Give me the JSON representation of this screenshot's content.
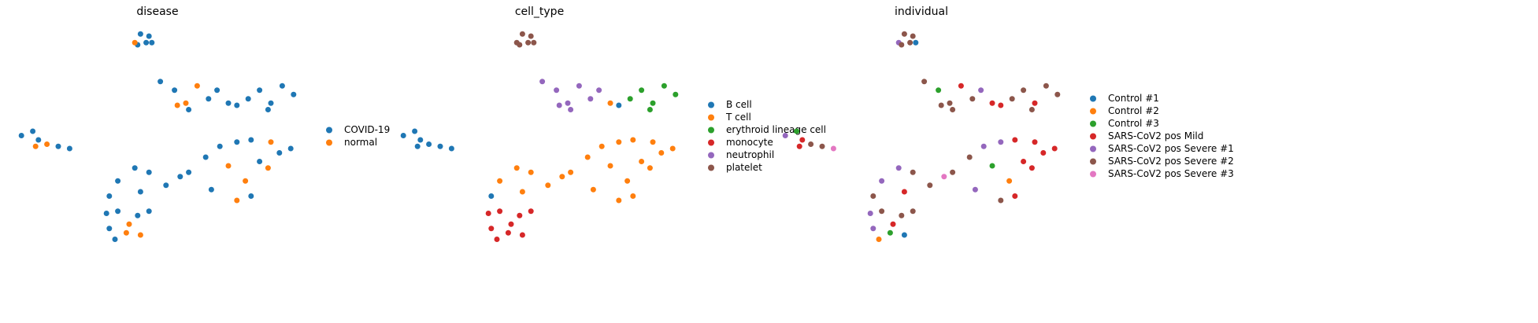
{
  "chart_data": [
    {
      "type": "scatter",
      "title": "disease",
      "xlim": [
        0,
        10
      ],
      "ylim": [
        0,
        10
      ],
      "legend": "right",
      "series": [
        {
          "name": "COVID-19",
          "color": "#1f77b4",
          "x": [
            4.4,
            4.7,
            4.8,
            4.3,
            4.6,
            5.1,
            5.6,
            6.8,
            6.1,
            7.1,
            7.5,
            7.8,
            8.2,
            8.6,
            9.0,
            9.4,
            9.8,
            8.9,
            0.2,
            0.6,
            0.8,
            1.5,
            1.9,
            6.1,
            6.7,
            7.2,
            7.8,
            8.3,
            9.7,
            8.6,
            9.3,
            6.9,
            8.3,
            3.6,
            4.2,
            4.7,
            5.3,
            4.4,
            3.3,
            5.8,
            3.2,
            3.6,
            4.3,
            4.7,
            3.3,
            3.5
          ],
          "y": [
            9.7,
            9.6,
            9.3,
            9.2,
            9.3,
            7.5,
            7.1,
            6.7,
            6.2,
            7.1,
            6.5,
            6.4,
            6.7,
            7.1,
            6.5,
            7.3,
            6.9,
            6.2,
            5.0,
            5.2,
            4.8,
            4.5,
            4.4,
            3.3,
            4.0,
            4.5,
            4.7,
            4.8,
            4.4,
            3.8,
            4.2,
            2.5,
            2.2,
            2.9,
            3.5,
            3.3,
            2.7,
            2.4,
            2.2,
            3.1,
            1.4,
            1.5,
            1.3,
            1.5,
            0.7,
            0.2
          ]
        },
        {
          "name": "normal",
          "color": "#ff7f0e",
          "x": [
            4.2,
            6.0,
            6.4,
            5.7,
            1.1,
            0.7,
            9.0,
            7.5,
            8.1,
            7.8,
            8.9,
            3.9,
            4.4,
            4.0
          ],
          "y": [
            9.3,
            6.5,
            7.3,
            6.4,
            4.6,
            4.5,
            4.7,
            3.6,
            2.9,
            2.0,
            3.5,
            0.5,
            0.4,
            0.9
          ]
        }
      ]
    },
    {
      "type": "scatter",
      "title": "cell_type",
      "xlim": [
        0,
        10
      ],
      "ylim": [
        0,
        10
      ],
      "legend": "right",
      "series": [
        {
          "name": "B cell",
          "color": "#1f77b4",
          "x": [
            7.8,
            0.2,
            0.6,
            0.8,
            1.1,
            1.5,
            1.9,
            0.7,
            3.3
          ],
          "y": [
            6.4,
            5.0,
            5.2,
            4.8,
            4.6,
            4.5,
            4.4,
            4.5,
            2.2
          ]
        },
        {
          "name": "T cell",
          "color": "#ff7f0e",
          "x": [
            7.5,
            6.1,
            6.7,
            7.2,
            7.8,
            8.3,
            9.0,
            9.7,
            7.5,
            8.1,
            8.6,
            9.3,
            6.9,
            7.8,
            8.3,
            8.9,
            3.6,
            4.2,
            4.7,
            5.3,
            4.4,
            5.8
          ],
          "y": [
            6.5,
            3.3,
            4.0,
            4.5,
            4.7,
            4.8,
            4.7,
            4.4,
            3.6,
            2.9,
            3.8,
            4.2,
            2.5,
            2.0,
            2.2,
            3.5,
            2.9,
            3.5,
            3.3,
            2.7,
            2.4,
            3.1
          ]
        },
        {
          "name": "erythroid lineage cell",
          "color": "#2ca02c",
          "x": [
            8.2,
            8.6,
            9.0,
            9.4,
            9.8,
            8.9
          ],
          "y": [
            6.7,
            7.1,
            6.5,
            7.3,
            6.9,
            6.2
          ]
        },
        {
          "name": "monocyte",
          "color": "#d62728",
          "x": [
            3.2,
            3.6,
            4.3,
            4.7,
            3.3,
            3.9,
            4.4,
            3.5,
            4.0
          ],
          "y": [
            1.4,
            1.5,
            1.3,
            1.5,
            0.7,
            0.5,
            0.4,
            0.2,
            0.9
          ]
        },
        {
          "name": "neutrophil",
          "color": "#9467bd",
          "x": [
            5.1,
            5.6,
            6.0,
            6.4,
            6.8,
            6.1,
            5.7,
            7.1
          ],
          "y": [
            7.5,
            7.1,
            6.5,
            7.3,
            6.7,
            6.2,
            6.4,
            7.1
          ]
        },
        {
          "name": "platelet",
          "color": "#8c564b",
          "x": [
            4.2,
            4.4,
            4.7,
            4.8,
            4.3,
            4.6
          ],
          "y": [
            9.3,
            9.7,
            9.6,
            9.3,
            9.2,
            9.3
          ]
        }
      ]
    },
    {
      "type": "scatter",
      "title": "individual",
      "xlim": [
        0,
        10
      ],
      "ylim": [
        0,
        10
      ],
      "legend": "right",
      "series": [
        {
          "name": "Control #1",
          "color": "#1f77b4",
          "x": [
            4.8,
            4.4
          ],
          "y": [
            9.3,
            0.4
          ]
        },
        {
          "name": "Control #2",
          "color": "#ff7f0e",
          "x": [
            8.1,
            3.5
          ],
          "y": [
            2.9,
            0.2
          ]
        },
        {
          "name": "Control #3",
          "color": "#2ca02c",
          "x": [
            5.6,
            0.6,
            7.5,
            3.9
          ],
          "y": [
            7.1,
            5.2,
            3.6,
            0.5
          ]
        },
        {
          "name": "SARS-CoV2 pos Mild",
          "color": "#d62728",
          "x": [
            6.4,
            7.5,
            7.8,
            9.0,
            0.8,
            0.7,
            8.3,
            9.0,
            9.7,
            8.6,
            9.3,
            8.3,
            8.9,
            4.4,
            4.0
          ],
          "y": [
            7.3,
            6.5,
            6.4,
            6.5,
            4.8,
            4.5,
            4.8,
            4.7,
            4.4,
            3.8,
            4.2,
            2.2,
            3.5,
            2.4,
            0.9
          ]
        },
        {
          "name": "SARS-CoV2 pos Severe #1",
          "color": "#9467bd",
          "x": [
            4.2,
            7.1,
            0.2,
            7.2,
            7.8,
            6.9,
            3.6,
            4.2,
            3.2,
            3.3
          ],
          "y": [
            9.3,
            7.1,
            5.0,
            4.5,
            4.7,
            2.5,
            2.9,
            3.5,
            1.4,
            0.7
          ]
        },
        {
          "name": "SARS-CoV2 pos Severe #2",
          "color": "#8c564b",
          "x": [
            4.4,
            4.7,
            4.3,
            4.6,
            5.1,
            6.0,
            6.8,
            6.1,
            5.7,
            8.2,
            8.6,
            9.4,
            9.8,
            8.9,
            1.1,
            1.5,
            6.1,
            6.7,
            7.8,
            4.7,
            5.3,
            3.3,
            3.6,
            4.3,
            4.7
          ],
          "y": [
            9.7,
            9.6,
            9.2,
            9.3,
            7.5,
            6.5,
            6.7,
            6.2,
            6.4,
            6.7,
            7.1,
            7.3,
            6.9,
            6.2,
            4.6,
            4.5,
            3.3,
            4.0,
            2.0,
            3.3,
            2.7,
            2.2,
            1.5,
            1.3,
            1.5
          ]
        },
        {
          "name": "SARS-CoV2 pos Severe #3",
          "color": "#e377c2",
          "x": [
            1.9,
            5.8
          ],
          "y": [
            4.4,
            3.1
          ]
        }
      ]
    }
  ]
}
